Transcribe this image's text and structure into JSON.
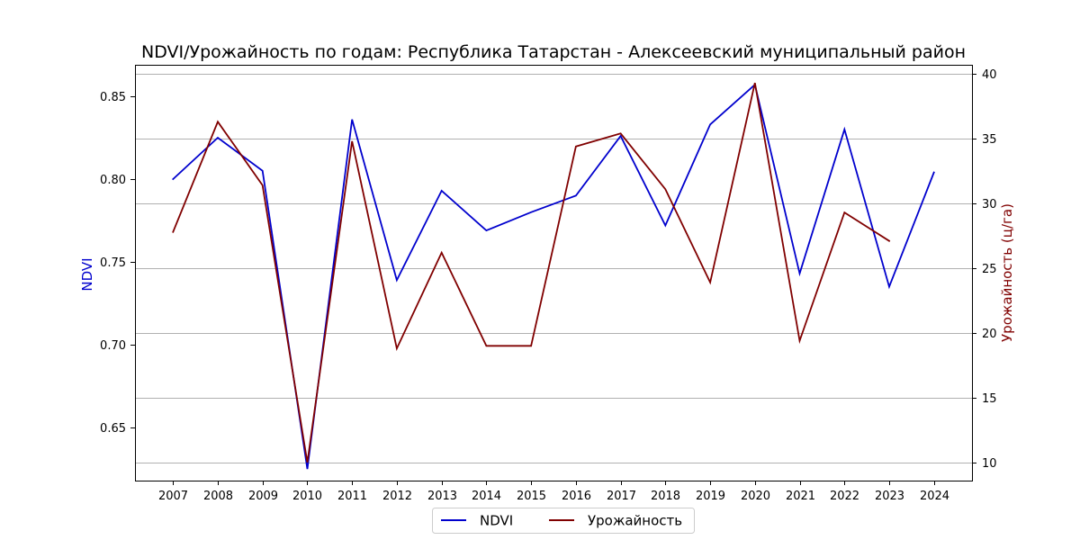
{
  "chart_data": {
    "type": "line",
    "title": "NDVI/Урожайность по годам: Республика Татарстан - Алексеевский муниципальный район",
    "x": [
      2007,
      2008,
      2009,
      2010,
      2011,
      2012,
      2013,
      2014,
      2015,
      2016,
      2017,
      2018,
      2019,
      2020,
      2021,
      2022,
      2023,
      2024
    ],
    "x_tick_labels": [
      "2007",
      "2008",
      "2009",
      "2010",
      "2011",
      "2012",
      "2013",
      "2014",
      "2015",
      "2016",
      "2017",
      "2018",
      "2019",
      "2020",
      "2021",
      "2022",
      "2023",
      "2024"
    ],
    "ylabel_left": "NDVI",
    "ylabel_right": "Урожайность (ц/га)",
    "ylim_left": [
      0.618,
      0.869
    ],
    "ylim_right": [
      8.6,
      40.7
    ],
    "yticks_left": [
      0.65,
      0.7,
      0.75,
      0.8,
      0.85
    ],
    "yticks_left_labels": [
      "0.65",
      "0.70",
      "0.75",
      "0.80",
      "0.85"
    ],
    "yticks_right": [
      10,
      15,
      20,
      25,
      30,
      35,
      40
    ],
    "yticks_right_labels": [
      "10",
      "15",
      "20",
      "25",
      "30",
      "35",
      "40"
    ],
    "grid": "horizontal, right axis",
    "legend_position": "bottom-center",
    "series": [
      {
        "name": "NDVI",
        "axis": "left",
        "color": "#0000cd",
        "values": [
          0.8,
          0.825,
          0.805,
          0.625,
          0.836,
          0.739,
          0.793,
          0.769,
          0.78,
          0.79,
          0.826,
          0.772,
          0.833,
          0.857,
          0.743,
          0.83,
          0.735,
          0.804
        ]
      },
      {
        "name": "Урожайность",
        "axis": "right",
        "color": "#800000",
        "values": [
          27.8,
          36.3,
          31.4,
          10.0,
          34.8,
          18.8,
          26.2,
          19.0,
          19.0,
          34.4,
          35.4,
          31.1,
          23.9,
          39.3,
          19.4,
          29.3,
          27.1,
          null
        ]
      }
    ]
  }
}
